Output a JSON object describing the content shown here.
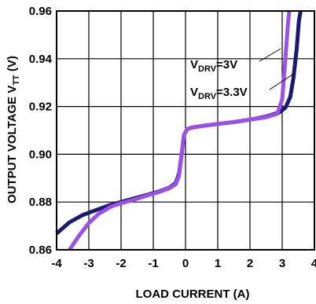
{
  "chart_data": {
    "type": "line",
    "title": "",
    "xlabel": "LOAD CURRENT (A)",
    "ylabel": {
      "main": "OUTPUT VOLTAGE V",
      "sub": "TT",
      "unit": " (V)"
    },
    "xlim": [
      -4,
      4
    ],
    "ylim": [
      0.86,
      0.96
    ],
    "x_ticks": [
      -4,
      -3,
      -2,
      -1,
      0,
      1,
      2,
      3,
      4
    ],
    "x_tick_labels": [
      "-4",
      "-3",
      "-2",
      "-1",
      "0",
      "1",
      "2",
      "3",
      "4"
    ],
    "y_ticks": [
      0.86,
      0.88,
      0.9,
      0.92,
      0.94,
      0.96
    ],
    "y_tick_labels": [
      "0.86",
      "0.88",
      "0.90",
      "0.92",
      "0.94",
      "0.96"
    ],
    "grid": true,
    "series": [
      {
        "name": "VDRV=3V",
        "label": {
          "main": "V",
          "sub": "DRV",
          "rest": "=3V"
        },
        "color": "#1a1a70",
        "points": [
          [
            -4.0,
            0.8668
          ],
          [
            -3.6,
            0.8715
          ],
          [
            -3.2,
            0.8745
          ],
          [
            -2.8,
            0.8765
          ],
          [
            -2.4,
            0.8785
          ],
          [
            -2.0,
            0.88
          ],
          [
            -1.6,
            0.8815
          ],
          [
            -1.2,
            0.883
          ],
          [
            -0.8,
            0.8845
          ],
          [
            -0.5,
            0.886
          ],
          [
            -0.3,
            0.888
          ],
          [
            -0.2,
            0.892
          ],
          [
            -0.12,
            0.9
          ],
          [
            -0.05,
            0.908
          ],
          [
            0.05,
            0.9105
          ],
          [
            0.2,
            0.9112
          ],
          [
            0.6,
            0.912
          ],
          [
            1.0,
            0.9127
          ],
          [
            1.5,
            0.9135
          ],
          [
            2.0,
            0.9145
          ],
          [
            2.5,
            0.9158
          ],
          [
            2.9,
            0.9175
          ],
          [
            3.1,
            0.9195
          ],
          [
            3.25,
            0.924
          ],
          [
            3.35,
            0.932
          ],
          [
            3.45,
            0.944
          ],
          [
            3.52,
            0.956
          ],
          [
            3.57,
            0.96
          ]
        ]
      },
      {
        "name": "VDRV=3.3V",
        "label": {
          "main": "V",
          "sub": "DRV",
          "rest": "=3.3V"
        },
        "color": "#9b50e6",
        "points": [
          [
            -3.6,
            0.86
          ],
          [
            -3.3,
            0.866
          ],
          [
            -3.0,
            0.8712
          ],
          [
            -2.7,
            0.875
          ],
          [
            -2.3,
            0.8782
          ],
          [
            -2.0,
            0.8795
          ],
          [
            -1.6,
            0.881
          ],
          [
            -1.2,
            0.8827
          ],
          [
            -0.8,
            0.8843
          ],
          [
            -0.5,
            0.8858
          ],
          [
            -0.3,
            0.8875
          ],
          [
            -0.2,
            0.891
          ],
          [
            -0.12,
            0.9
          ],
          [
            -0.05,
            0.908
          ],
          [
            0.05,
            0.9105
          ],
          [
            0.2,
            0.9112
          ],
          [
            0.6,
            0.912
          ],
          [
            1.0,
            0.9127
          ],
          [
            1.5,
            0.9135
          ],
          [
            2.0,
            0.9145
          ],
          [
            2.5,
            0.9155
          ],
          [
            2.85,
            0.917
          ],
          [
            3.0,
            0.923
          ],
          [
            3.1,
            0.94
          ],
          [
            3.18,
            0.955
          ],
          [
            3.22,
            0.96
          ]
        ]
      }
    ]
  }
}
